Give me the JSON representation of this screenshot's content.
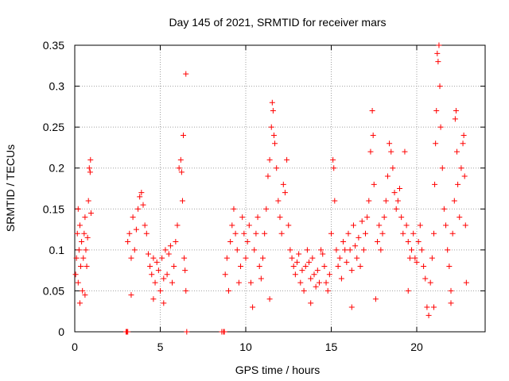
{
  "chart_data": {
    "type": "scatter",
    "title": "Day 145 of 2021, SRMTID for receiver mars",
    "xlabel": "GPS time / hours",
    "ylabel": "SRMTID / TECUs",
    "xlim": [
      0,
      24
    ],
    "ylim": [
      0,
      0.35
    ],
    "xticks": [
      0,
      5,
      10,
      15,
      20
    ],
    "yticks": [
      0,
      0.05,
      0.1,
      0.15,
      0.2,
      0.25,
      0.3,
      0.35
    ],
    "xtick_labels": [
      "0",
      "5",
      "10",
      "15",
      "20"
    ],
    "ytick_labels": [
      "0",
      "0.05",
      "0.1",
      "0.15",
      "0.2",
      "0.25",
      "0.3",
      "0.35"
    ],
    "grid": true,
    "marker": "plus",
    "color": "#ff0000",
    "series": [
      {
        "name": "SRMTID",
        "points": [
          [
            0.05,
            0.07
          ],
          [
            0.1,
            0.09
          ],
          [
            0.15,
            0.12
          ],
          [
            0.2,
            0.06
          ],
          [
            0.25,
            0.1
          ],
          [
            0.3,
            0.13
          ],
          [
            0.35,
            0.08
          ],
          [
            0.4,
            0.11
          ],
          [
            0.45,
            0.05
          ],
          [
            0.5,
            0.09
          ],
          [
            0.55,
            0.12
          ],
          [
            0.6,
            0.14
          ],
          [
            0.65,
            0.1
          ],
          [
            0.7,
            0.08
          ],
          [
            0.75,
            0.115
          ],
          [
            0.8,
            0.16
          ],
          [
            0.85,
            0.2
          ],
          [
            0.9,
            0.195
          ],
          [
            0.92,
            0.21
          ],
          [
            0.95,
            0.145
          ],
          [
            0.3,
            0.035
          ],
          [
            0.6,
            0.045
          ],
          [
            0.2,
            0.15
          ],
          [
            3.0,
            0.0
          ],
          [
            3.05,
            0.0
          ],
          [
            3.1,
            0.0
          ],
          [
            3.1,
            0.11
          ],
          [
            3.2,
            0.12
          ],
          [
            3.3,
            0.09
          ],
          [
            3.4,
            0.14
          ],
          [
            3.5,
            0.1
          ],
          [
            3.6,
            0.125
          ],
          [
            3.7,
            0.15
          ],
          [
            3.8,
            0.165
          ],
          [
            3.9,
            0.17
          ],
          [
            4.0,
            0.155
          ],
          [
            4.1,
            0.13
          ],
          [
            4.2,
            0.12
          ],
          [
            4.3,
            0.095
          ],
          [
            4.4,
            0.08
          ],
          [
            4.5,
            0.07
          ],
          [
            4.6,
            0.09
          ],
          [
            4.7,
            0.06
          ],
          [
            4.8,
            0.085
          ],
          [
            4.9,
            0.075
          ],
          [
            5.0,
            0.05
          ],
          [
            5.1,
            0.09
          ],
          [
            5.2,
            0.065
          ],
          [
            5.3,
            0.1
          ],
          [
            5.4,
            0.07
          ],
          [
            5.5,
            0.095
          ],
          [
            5.6,
            0.105
          ],
          [
            5.7,
            0.06
          ],
          [
            5.8,
            0.08
          ],
          [
            5.9,
            0.11
          ],
          [
            6.0,
            0.13
          ],
          [
            6.1,
            0.2
          ],
          [
            6.2,
            0.21
          ],
          [
            6.25,
            0.195
          ],
          [
            6.3,
            0.16
          ],
          [
            6.35,
            0.24
          ],
          [
            6.4,
            0.09
          ],
          [
            6.45,
            0.075
          ],
          [
            6.5,
            0.315
          ],
          [
            6.55,
            0.0
          ],
          [
            3.3,
            0.045
          ],
          [
            4.6,
            0.04
          ],
          [
            5.2,
            0.035
          ],
          [
            6.5,
            0.05
          ],
          [
            8.6,
            0.0
          ],
          [
            8.7,
            0.0
          ],
          [
            8.75,
            0.0
          ],
          [
            8.8,
            0.07
          ],
          [
            8.9,
            0.09
          ],
          [
            9.0,
            0.05
          ],
          [
            9.1,
            0.11
          ],
          [
            9.2,
            0.13
          ],
          [
            9.3,
            0.15
          ],
          [
            9.4,
            0.12
          ],
          [
            9.5,
            0.1
          ],
          [
            9.6,
            0.06
          ],
          [
            9.7,
            0.08
          ],
          [
            9.8,
            0.14
          ],
          [
            9.9,
            0.12
          ],
          [
            10.0,
            0.09
          ],
          [
            10.1,
            0.11
          ],
          [
            10.2,
            0.13
          ],
          [
            10.3,
            0.06
          ],
          [
            10.4,
            0.03
          ],
          [
            10.5,
            0.1
          ],
          [
            10.6,
            0.12
          ],
          [
            10.7,
            0.14
          ],
          [
            10.8,
            0.08
          ],
          [
            10.9,
            0.065
          ],
          [
            11.0,
            0.09
          ],
          [
            11.1,
            0.12
          ],
          [
            11.2,
            0.15
          ],
          [
            11.3,
            0.19
          ],
          [
            11.4,
            0.21
          ],
          [
            11.5,
            0.25
          ],
          [
            11.55,
            0.28
          ],
          [
            11.6,
            0.27
          ],
          [
            11.65,
            0.24
          ],
          [
            11.7,
            0.23
          ],
          [
            11.8,
            0.2
          ],
          [
            11.9,
            0.16
          ],
          [
            12.0,
            0.14
          ],
          [
            12.1,
            0.12
          ],
          [
            12.2,
            0.18
          ],
          [
            12.3,
            0.17
          ],
          [
            12.4,
            0.21
          ],
          [
            12.5,
            0.13
          ],
          [
            12.6,
            0.1
          ],
          [
            12.7,
            0.09
          ],
          [
            12.8,
            0.08
          ],
          [
            12.9,
            0.07
          ],
          [
            13.0,
            0.085
          ],
          [
            13.1,
            0.095
          ],
          [
            13.2,
            0.06
          ],
          [
            13.3,
            0.075
          ],
          [
            13.4,
            0.05
          ],
          [
            13.5,
            0.08
          ],
          [
            13.6,
            0.1
          ],
          [
            13.7,
            0.085
          ],
          [
            13.8,
            0.065
          ],
          [
            13.9,
            0.09
          ],
          [
            14.0,
            0.07
          ],
          [
            14.1,
            0.055
          ],
          [
            14.2,
            0.075
          ],
          [
            14.3,
            0.06
          ],
          [
            14.4,
            0.1
          ],
          [
            14.5,
            0.095
          ],
          [
            14.6,
            0.08
          ],
          [
            14.7,
            0.06
          ],
          [
            14.8,
            0.05
          ],
          [
            14.9,
            0.07
          ],
          [
            15.0,
            0.12
          ],
          [
            15.1,
            0.21
          ],
          [
            15.15,
            0.2
          ],
          [
            15.2,
            0.16
          ],
          [
            15.3,
            0.1
          ],
          [
            15.4,
            0.08
          ],
          [
            15.5,
            0.09
          ],
          [
            15.6,
            0.065
          ],
          [
            15.7,
            0.11
          ],
          [
            15.8,
            0.1
          ],
          [
            15.9,
            0.085
          ],
          [
            16.0,
            0.12
          ],
          [
            16.1,
            0.1
          ],
          [
            16.2,
            0.075
          ],
          [
            16.3,
            0.13
          ],
          [
            16.4,
            0.105
          ],
          [
            16.5,
            0.09
          ],
          [
            16.6,
            0.115
          ],
          [
            16.7,
            0.08
          ],
          [
            16.8,
            0.135
          ],
          [
            16.9,
            0.1
          ],
          [
            17.0,
            0.12
          ],
          [
            17.1,
            0.14
          ],
          [
            17.2,
            0.16
          ],
          [
            17.3,
            0.22
          ],
          [
            17.4,
            0.27
          ],
          [
            17.45,
            0.24
          ],
          [
            17.5,
            0.18
          ],
          [
            17.6,
            0.04
          ],
          [
            17.7,
            0.11
          ],
          [
            17.8,
            0.13
          ],
          [
            17.9,
            0.1
          ],
          [
            18.0,
            0.12
          ],
          [
            18.1,
            0.14
          ],
          [
            18.2,
            0.16
          ],
          [
            18.3,
            0.19
          ],
          [
            18.4,
            0.23
          ],
          [
            18.5,
            0.22
          ],
          [
            18.6,
            0.2
          ],
          [
            18.7,
            0.17
          ],
          [
            18.8,
            0.15
          ],
          [
            18.9,
            0.16
          ],
          [
            19.0,
            0.175
          ],
          [
            19.1,
            0.14
          ],
          [
            19.2,
            0.12
          ],
          [
            19.3,
            0.22
          ],
          [
            19.4,
            0.13
          ],
          [
            19.5,
            0.11
          ],
          [
            19.6,
            0.09
          ],
          [
            19.7,
            0.1
          ],
          [
            19.8,
            0.12
          ],
          [
            19.9,
            0.09
          ],
          [
            20.0,
            0.085
          ],
          [
            20.1,
            0.11
          ],
          [
            20.2,
            0.13
          ],
          [
            20.3,
            0.1
          ],
          [
            20.4,
            0.08
          ],
          [
            20.5,
            0.065
          ],
          [
            20.6,
            0.03
          ],
          [
            20.7,
            0.02
          ],
          [
            20.8,
            0.06
          ],
          [
            20.9,
            0.09
          ],
          [
            21.0,
            0.12
          ],
          [
            21.05,
            0.18
          ],
          [
            21.1,
            0.23
          ],
          [
            21.15,
            0.27
          ],
          [
            21.2,
            0.34
          ],
          [
            21.25,
            0.33
          ],
          [
            21.3,
            0.35
          ],
          [
            21.35,
            0.3
          ],
          [
            21.4,
            0.25
          ],
          [
            21.5,
            0.2
          ],
          [
            21.6,
            0.15
          ],
          [
            21.7,
            0.13
          ],
          [
            21.8,
            0.1
          ],
          [
            21.9,
            0.08
          ],
          [
            22.0,
            0.05
          ],
          [
            22.1,
            0.12
          ],
          [
            22.2,
            0.16
          ],
          [
            22.25,
            0.26
          ],
          [
            22.3,
            0.27
          ],
          [
            22.35,
            0.22
          ],
          [
            22.4,
            0.18
          ],
          [
            22.5,
            0.14
          ],
          [
            22.6,
            0.2
          ],
          [
            22.7,
            0.23
          ],
          [
            22.75,
            0.24
          ],
          [
            22.8,
            0.19
          ],
          [
            22.85,
            0.13
          ],
          [
            22.9,
            0.06
          ],
          [
            22.0,
            0.035
          ],
          [
            21.0,
            0.03
          ],
          [
            19.5,
            0.05
          ],
          [
            16.2,
            0.03
          ],
          [
            13.8,
            0.035
          ],
          [
            11.4,
            0.04
          ]
        ]
      }
    ]
  }
}
